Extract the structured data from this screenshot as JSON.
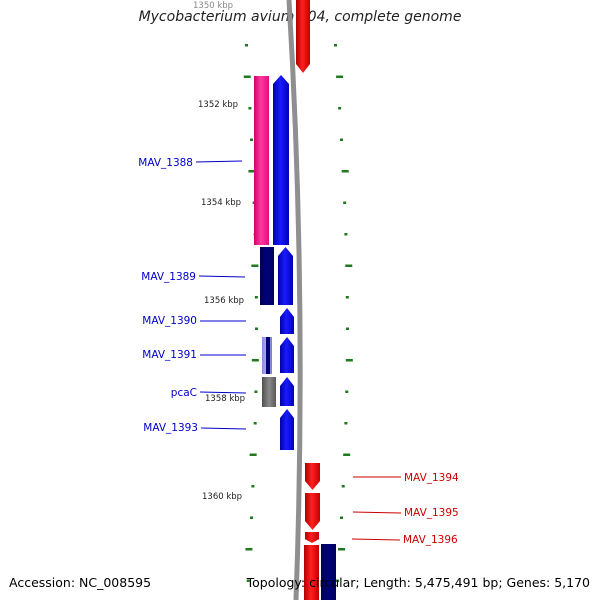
{
  "title": "Mycobacterium avium 104, complete genome",
  "accession": "Accession: NC_008595",
  "topology": "Topology: circular; Length: 5,475,491 bp; Genes: 5,170",
  "colors": {
    "backbone": "#8c8c8c",
    "tick": "#1f7a1f",
    "forward_gene": "#ff0000",
    "reverse_gene": "#0000ff",
    "cds_dark": "#00007a",
    "pink_feature": "#ff1493",
    "gray_feature": "#707070",
    "label_blue": "#0000cc",
    "label_red": "#cc0000"
  },
  "kbp_labels": [
    {
      "text": "1350 kbp",
      "kbp": 1350
    },
    {
      "text": "1352 kbp",
      "kbp": 1352
    },
    {
      "text": "1354 kbp",
      "kbp": 1354
    },
    {
      "text": "1356 kbp",
      "kbp": 1356
    },
    {
      "text": "1358 kbp",
      "kbp": 1358
    },
    {
      "text": "1360 kbp",
      "kbp": 1360
    }
  ],
  "gene_labels": [
    {
      "name": "MAV_1388",
      "strand": "reverse"
    },
    {
      "name": "MAV_1389",
      "strand": "reverse"
    },
    {
      "name": "MAV_1390",
      "strand": "reverse"
    },
    {
      "name": "MAV_1391",
      "strand": "reverse"
    },
    {
      "name": "pcaC",
      "strand": "reverse"
    },
    {
      "name": "MAV_1393",
      "strand": "reverse"
    },
    {
      "name": "MAV_1394",
      "strand": "forward"
    },
    {
      "name": "MAV_1395",
      "strand": "forward"
    },
    {
      "name": "MAV_1396",
      "strand": "forward"
    }
  ]
}
